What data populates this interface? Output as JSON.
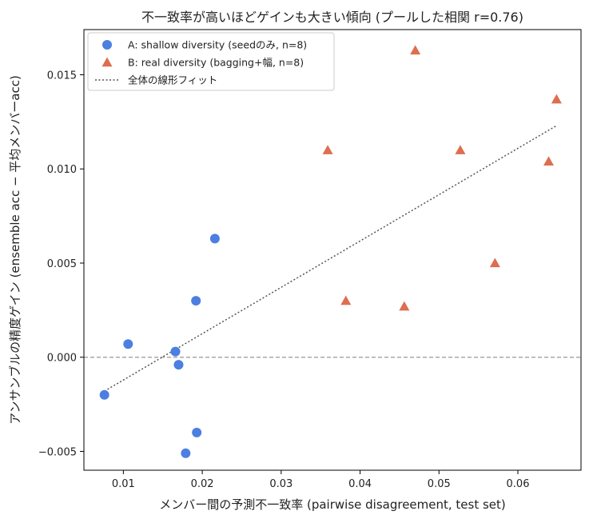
{
  "chart_data": {
    "type": "scatter",
    "title": "不一致率が高いほどゲインも大きい傾向 (プールした相関 r=0.76)",
    "xlabel": "メンバー間の予測不一致率 (pairwise disagreement, test set)",
    "ylabel": "アンサンブルの精度ゲイン (ensemble acc − 平均メンバーacc)",
    "xlim": [
      0.005,
      0.068
    ],
    "ylim": [
      -0.006,
      0.0174
    ],
    "x_ticks": [
      0.01,
      0.02,
      0.03,
      0.04,
      0.05,
      0.06
    ],
    "x_tick_labels": [
      "0.01",
      "0.02",
      "0.03",
      "0.04",
      "0.05",
      "0.06"
    ],
    "y_ticks": [
      -0.005,
      0.0,
      0.005,
      0.01,
      0.015
    ],
    "y_tick_labels": [
      "−0.005",
      "0.000",
      "0.005",
      "0.010",
      "0.015"
    ],
    "grid": false,
    "legend_position": "top-left",
    "reference_line_y": 0.0,
    "series": [
      {
        "name": "A: shallow diversity (seedのみ, n=8)",
        "marker": "circle",
        "color": "#4c7fe0",
        "points": [
          {
            "x": 0.0076,
            "y": -0.002
          },
          {
            "x": 0.0106,
            "y": 0.0007
          },
          {
            "x": 0.0166,
            "y": 0.0003
          },
          {
            "x": 0.017,
            "y": -0.0004
          },
          {
            "x": 0.0179,
            "y": -0.0051
          },
          {
            "x": 0.0192,
            "y": 0.003
          },
          {
            "x": 0.0193,
            "y": -0.004
          },
          {
            "x": 0.0216,
            "y": 0.0063
          }
        ]
      },
      {
        "name": "B: real diversity (bagging+幅, n=8)",
        "marker": "triangle",
        "color": "#dd6e50",
        "points": [
          {
            "x": 0.0359,
            "y": 0.011
          },
          {
            "x": 0.0382,
            "y": 0.003
          },
          {
            "x": 0.0456,
            "y": 0.0027
          },
          {
            "x": 0.047,
            "y": 0.0163
          },
          {
            "x": 0.0527,
            "y": 0.011
          },
          {
            "x": 0.0571,
            "y": 0.005
          },
          {
            "x": 0.0639,
            "y": 0.0104
          },
          {
            "x": 0.0649,
            "y": 0.0137
          }
        ]
      }
    ],
    "fit": {
      "name": "全体の線形フィット",
      "color": "#555555",
      "x": [
        0.0076,
        0.0649
      ],
      "y": [
        -0.0018,
        0.0123
      ]
    }
  }
}
